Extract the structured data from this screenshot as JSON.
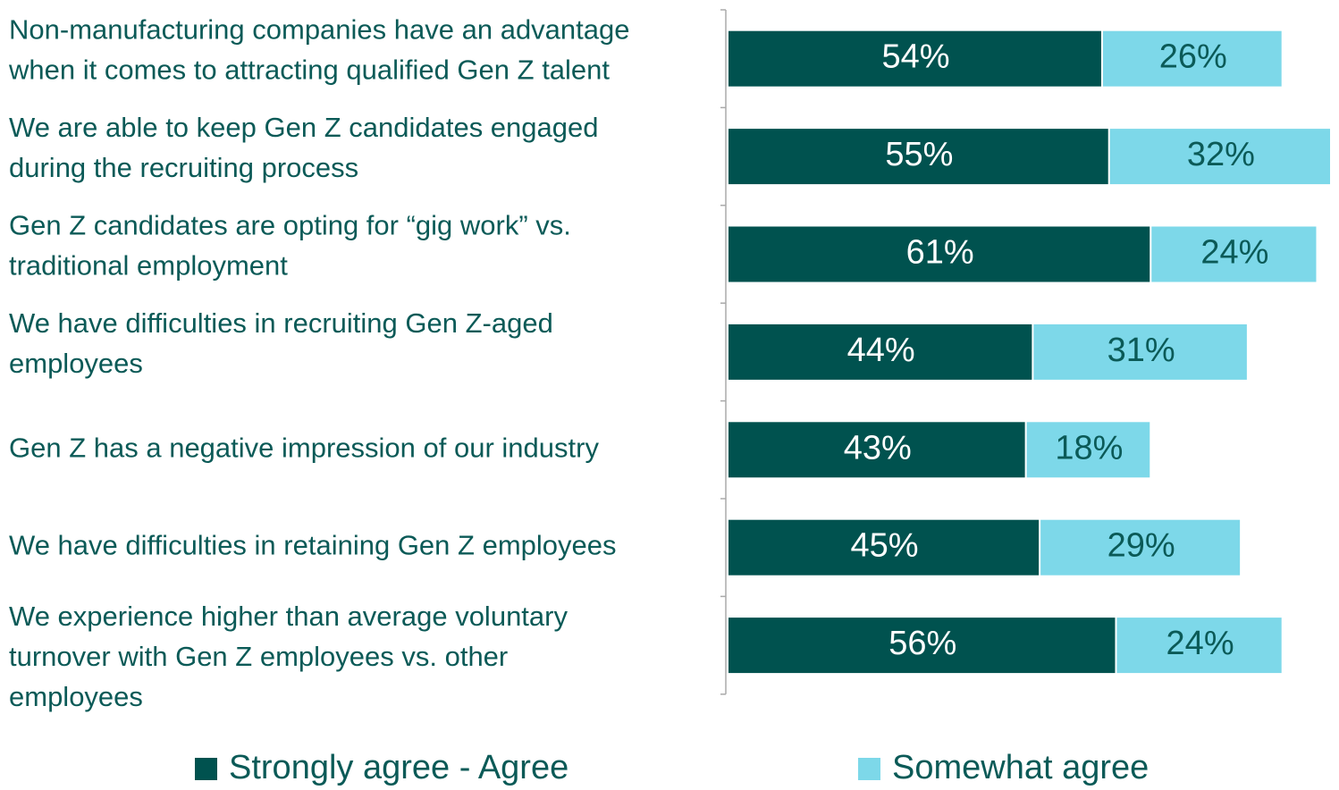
{
  "chart_data": {
    "type": "stacked_barh",
    "categories": [
      "Non-manufacturing companies have an advantage\nwhen it comes to attracting qualified Gen Z talent",
      "We are able to keep Gen Z candidates engaged\nduring the recruiting process",
      "Gen Z candidates are opting for “gig work” vs.\ntraditional employment",
      "We have difficulties in recruiting Gen Z-aged\nemployees",
      "Gen Z has a negative impression of our industry",
      "We have difficulties in retaining Gen Z employees",
      "We experience higher than average voluntary\nturnover with Gen Z employees vs. other\nemployees"
    ],
    "series": [
      {
        "name": "Strongly agree - Agree",
        "color": "#00524f",
        "label_color": "#ffffff",
        "values": [
          54,
          55,
          61,
          44,
          43,
          45,
          56
        ],
        "value_labels": [
          "54%",
          "55%",
          "61%",
          "44%",
          "43%",
          "45%",
          "56%"
        ]
      },
      {
        "name": "Somewhat agree",
        "color": "#7dd8e9",
        "label_color": "#0b5a57",
        "values": [
          26,
          32,
          24,
          31,
          18,
          29,
          24
        ],
        "value_labels": [
          "26%",
          "32%",
          "24%",
          "31%",
          "18%",
          "29%",
          "24%"
        ]
      }
    ]
  }
}
